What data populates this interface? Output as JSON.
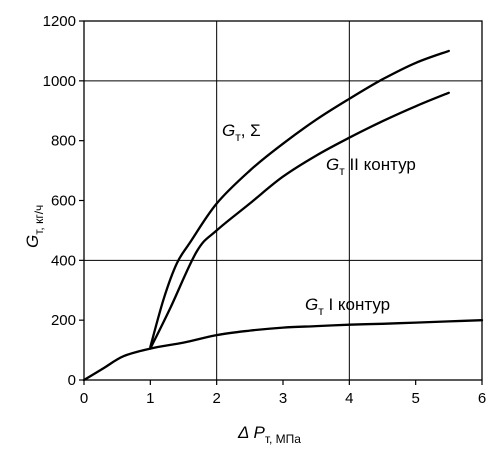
{
  "chart_data": {
    "type": "line",
    "xlabel": {
      "main": "Δ P",
      "sub": "т, МПа"
    },
    "ylabel": {
      "main": "G",
      "sub": "т, кг/ч"
    },
    "xlim": [
      0,
      6
    ],
    "ylim": [
      0,
      1200
    ],
    "x_ticks": [
      0,
      1,
      2,
      3,
      4,
      5,
      6
    ],
    "y_ticks": [
      0,
      200,
      400,
      600,
      800,
      1000,
      1200
    ],
    "grid": {
      "x": [
        2,
        4
      ],
      "y": [
        400,
        1000
      ]
    },
    "colors": {
      "line": "#000000",
      "grid": "#000000",
      "background": "#ffffff"
    },
    "series": [
      {
        "name": "G т, Σ",
        "label": {
          "main": "G",
          "sub": "т",
          "rest": ", Σ"
        },
        "x": [
          1.0,
          1.2,
          1.4,
          1.6,
          2.0,
          2.5,
          3.0,
          3.5,
          4.0,
          4.5,
          5.0,
          5.5
        ],
        "y": [
          110,
          270,
          390,
          460,
          590,
          700,
          790,
          870,
          940,
          1005,
          1060,
          1100
        ]
      },
      {
        "name": "G т II контур",
        "label": {
          "main": "G",
          "sub": "т",
          "rest": " II контур"
        },
        "x": [
          1.0,
          1.3,
          1.7,
          2.0,
          2.5,
          3.0,
          3.5,
          4.0,
          4.5,
          5.0,
          5.5
        ],
        "y": [
          105,
          240,
          430,
          500,
          590,
          680,
          750,
          810,
          865,
          915,
          960
        ]
      },
      {
        "name": "G т I контур",
        "label": {
          "main": "G",
          "sub": "т",
          "rest": " I контур"
        },
        "x": [
          0,
          0.3,
          0.6,
          1.0,
          1.5,
          2.0,
          2.5,
          3.0,
          3.5,
          4.0,
          4.5,
          5.0,
          5.5,
          6.0
        ],
        "y": [
          0,
          40,
          80,
          105,
          125,
          150,
          165,
          175,
          180,
          185,
          188,
          192,
          196,
          200
        ]
      }
    ]
  }
}
